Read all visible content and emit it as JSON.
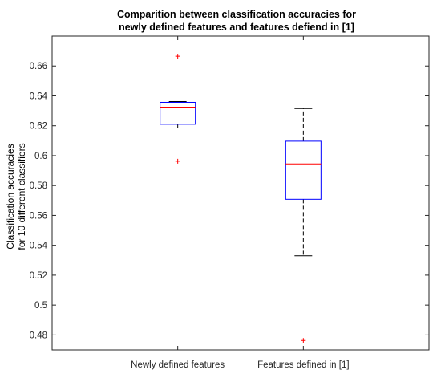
{
  "chart_data": {
    "type": "box",
    "title": [
      "Comparition between classification accuracies for",
      "newly defined features and features defiend in [1]"
    ],
    "ylabel": [
      "Classification accuracies",
      "for 10 different classifiers"
    ],
    "xlabel": "",
    "ylim": [
      0.47,
      0.68
    ],
    "yticks": [
      0.48,
      0.5,
      0.52,
      0.54,
      0.56,
      0.58,
      0.6,
      0.62,
      0.64,
      0.66
    ],
    "ytick_labels": [
      "0.48",
      "0.5",
      "0.52",
      "0.54",
      "0.56",
      "0.58",
      "0.6",
      "0.62",
      "0.64",
      "0.66"
    ],
    "grid": false,
    "categories": [
      "Newly defined features",
      "Features defined in [1]"
    ],
    "boxes": [
      {
        "category": "Newly defined features",
        "whisker_low": 0.6185,
        "q1": 0.621,
        "median": 0.6325,
        "q3": 0.6357,
        "whisker_high": 0.6362,
        "outliers": [
          0.6665,
          0.5963
        ]
      },
      {
        "category": "Features defined in [1]",
        "whisker_low": 0.533,
        "q1": 0.5708,
        "median": 0.5945,
        "q3": 0.6097,
        "whisker_high": 0.6315,
        "outliers": [
          0.4763
        ]
      }
    ],
    "colors": {
      "box": "#0000ff",
      "median": "#ff0000",
      "whisker": "#000000",
      "outlier": "#ff0000",
      "axes": "#262626"
    }
  }
}
